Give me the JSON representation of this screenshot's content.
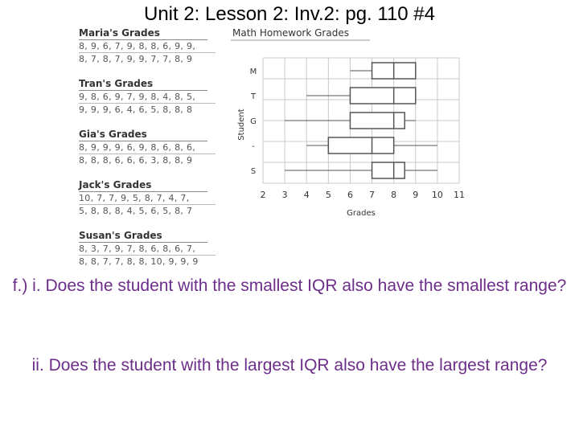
{
  "slide": {
    "title": "Unit 2: Lesson 2: Inv.2: pg. 110 #4",
    "question_i": "f.) i. Does the student with the smallest IQR also have the smallest range?",
    "question_ii": "ii. Does the student with the largest IQR also have the largest range?"
  },
  "grade_lists": [
    {
      "name": "Maria's Grades",
      "lines": [
        "8, 9, 6, 7, 9, 8, 8, 6, 9, 9,",
        "8, 7, 8, 7, 9, 9, 7, 7, 8, 9"
      ]
    },
    {
      "name": "Tran's Grades",
      "lines": [
        "9, 8, 6, 9, 7, 9, 8, 4, 8, 5,",
        "9, 9, 9, 6, 4, 6, 5, 8, 8, 8"
      ]
    },
    {
      "name": "Gia's Grades",
      "lines": [
        "8, 9, 9, 9, 6, 9, 8, 6, 8, 6,",
        "8, 8, 8, 6, 6, 6, 3, 8, 8, 9"
      ]
    },
    {
      "name": "Jack's Grades",
      "lines": [
        "10, 7, 7, 9, 5, 8, 7, 4, 7,",
        "5, 8, 8, 8, 4, 5, 6, 5, 8, 7"
      ]
    },
    {
      "name": "Susan's Grades",
      "lines": [
        "8, 3, 7, 9, 7, 8, 6, 8, 6, 7,",
        "8, 8, 7, 7, 8, 8, 10, 9, 9, 9"
      ]
    }
  ],
  "chart_data": {
    "type": "boxplot",
    "title": "Math Homework Grades",
    "xlabel": "Grades",
    "ylabel": "Student",
    "xlim": [
      2,
      11
    ],
    "xticks": [
      2,
      3,
      4,
      5,
      6,
      7,
      8,
      9,
      10,
      11
    ],
    "grid": true,
    "series": [
      {
        "name": "M",
        "min": 6,
        "q1": 7,
        "median": 8,
        "q3": 9,
        "max": 9
      },
      {
        "name": "T",
        "min": 4,
        "q1": 6,
        "median": 8,
        "q3": 9,
        "max": 9
      },
      {
        "name": "G",
        "min": 3,
        "q1": 6,
        "median": 8,
        "q3": 8.5,
        "max": 9
      },
      {
        "name": "J",
        "min": 4,
        "q1": 5,
        "median": 7,
        "q3": 8,
        "max": 10
      },
      {
        "name": "S",
        "min": 3,
        "q1": 7,
        "median": 8,
        "q3": 8.5,
        "max": 10
      }
    ],
    "row_labels": [
      "M",
      "T",
      "G",
      "-",
      "S"
    ],
    "colors": {
      "box": "#555555",
      "grid": "#c8c8c8",
      "text": "#333333"
    }
  }
}
